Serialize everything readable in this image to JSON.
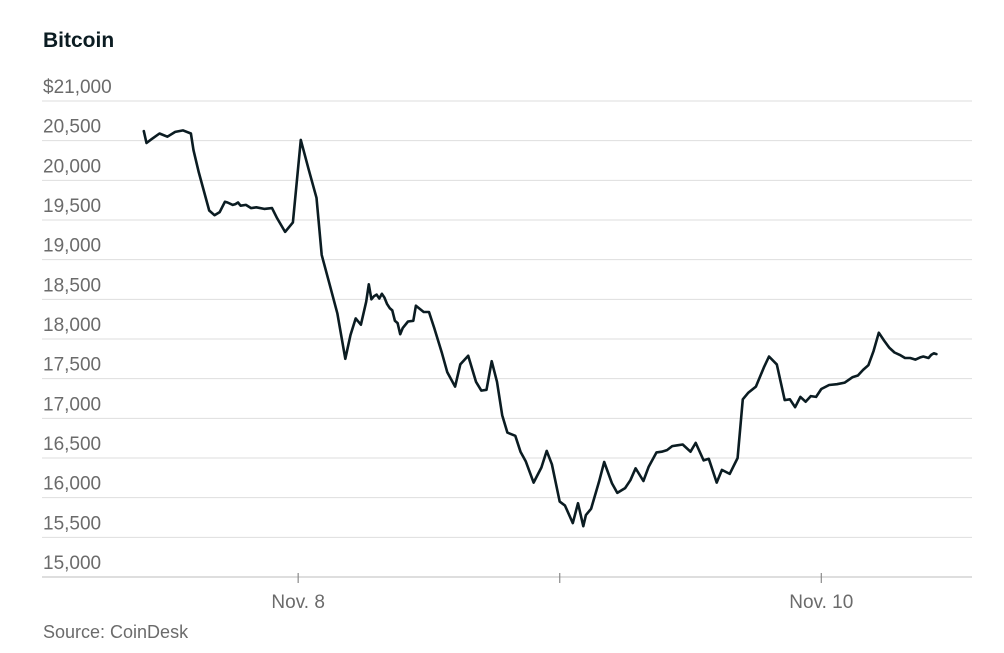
{
  "chart_data": {
    "type": "line",
    "title": "Bitcoin",
    "source": "Source: CoinDesk",
    "ylabel": "",
    "xlabel": "",
    "ylim": [
      15000,
      21000
    ],
    "xlim": [
      -0.62,
      2.45
    ],
    "y_ticks": [
      {
        "value": 21000,
        "label": "$21,000"
      },
      {
        "value": 20500,
        "label": "20,500"
      },
      {
        "value": 20000,
        "label": "20,000"
      },
      {
        "value": 19500,
        "label": "19,500"
      },
      {
        "value": 19000,
        "label": "19,000"
      },
      {
        "value": 18500,
        "label": "18,500"
      },
      {
        "value": 18000,
        "label": "18,000"
      },
      {
        "value": 17500,
        "label": "17,500"
      },
      {
        "value": 17000,
        "label": "17,000"
      },
      {
        "value": 16500,
        "label": "16,500"
      },
      {
        "value": 16000,
        "label": "16,000"
      },
      {
        "value": 15500,
        "label": "15,500"
      },
      {
        "value": 15000,
        "label": "15,000"
      }
    ],
    "x_ticks": [
      {
        "value": 0,
        "label": "Nov. 8"
      },
      {
        "value": 1,
        "label": ""
      },
      {
        "value": 2,
        "label": "Nov. 10"
      }
    ],
    "series": [
      {
        "color": "#0b1c22",
        "x": [
          -0.59,
          -0.58,
          -0.56,
          -0.53,
          -0.5,
          -0.47,
          -0.44,
          -0.41,
          -0.4,
          -0.38,
          -0.34,
          -0.32,
          -0.3,
          -0.28,
          -0.27,
          -0.25,
          -0.24,
          -0.23,
          -0.22,
          -0.2,
          -0.18,
          -0.16,
          -0.13,
          -0.1,
          -0.08,
          -0.05,
          -0.02,
          0.01,
          0.04,
          0.07,
          0.09,
          0.12,
          0.15,
          0.18,
          0.2,
          0.22,
          0.24,
          0.26,
          0.27,
          0.28,
          0.29,
          0.3,
          0.31,
          0.32,
          0.33,
          0.34,
          0.35,
          0.36,
          0.37,
          0.38,
          0.39,
          0.4,
          0.42,
          0.44,
          0.45,
          0.48,
          0.5,
          0.52,
          0.55,
          0.57,
          0.6,
          0.62,
          0.65,
          0.68,
          0.7,
          0.72,
          0.74,
          0.76,
          0.78,
          0.8,
          0.83,
          0.85,
          0.87,
          0.9,
          0.93,
          0.95,
          0.97,
          1.0,
          1.02,
          1.05,
          1.07,
          1.09,
          1.1,
          1.12,
          1.15,
          1.17,
          1.2,
          1.22,
          1.25,
          1.27,
          1.29,
          1.32,
          1.34,
          1.37,
          1.39,
          1.41,
          1.43,
          1.45,
          1.47,
          1.5,
          1.52,
          1.55,
          1.57,
          1.6,
          1.62,
          1.65,
          1.68,
          1.7,
          1.72,
          1.75,
          1.78,
          1.8,
          1.83,
          1.86,
          1.88,
          1.9,
          1.92,
          1.94,
          1.96,
          1.98,
          2.0,
          2.03,
          2.06,
          2.09,
          2.12,
          2.14,
          2.16,
          2.18,
          2.2,
          2.22,
          2.24,
          2.26,
          2.28,
          2.3,
          2.32,
          2.34,
          2.36,
          2.38,
          2.39,
          2.41,
          2.42,
          2.43,
          2.44
        ],
        "y": [
          20620,
          20470,
          20520,
          20590,
          20550,
          20610,
          20630,
          20590,
          20380,
          20100,
          19620,
          19560,
          19600,
          19730,
          19720,
          19690,
          19700,
          19720,
          19680,
          19690,
          19650,
          19660,
          19640,
          19650,
          19520,
          19350,
          19470,
          20510,
          20140,
          19780,
          19060,
          18690,
          18320,
          17750,
          18050,
          18260,
          18180,
          18470,
          18690,
          18500,
          18540,
          18560,
          18510,
          18570,
          18520,
          18440,
          18390,
          18360,
          18230,
          18200,
          18060,
          18140,
          18220,
          18230,
          18420,
          18340,
          18340,
          18140,
          17820,
          17580,
          17400,
          17680,
          17790,
          17460,
          17350,
          17360,
          17720,
          17460,
          17040,
          16820,
          16780,
          16580,
          16460,
          16190,
          16380,
          16590,
          16420,
          15950,
          15900,
          15680,
          15930,
          15640,
          15780,
          15860,
          16200,
          16450,
          16180,
          16060,
          16120,
          16220,
          16370,
          16210,
          16390,
          16570,
          16580,
          16600,
          16650,
          16660,
          16670,
          16580,
          16690,
          16470,
          16490,
          16190,
          16350,
          16300,
          16500,
          17240,
          17320,
          17400,
          17640,
          17780,
          17680,
          17230,
          17240,
          17140,
          17270,
          17210,
          17280,
          17270,
          17370,
          17420,
          17430,
          17450,
          17520,
          17540,
          17610,
          17670,
          17850,
          18080,
          17980,
          17890,
          17830,
          17800,
          17760,
          17760,
          17740,
          17770,
          17780,
          17760,
          17800,
          17820,
          17810
        ]
      }
    ]
  }
}
